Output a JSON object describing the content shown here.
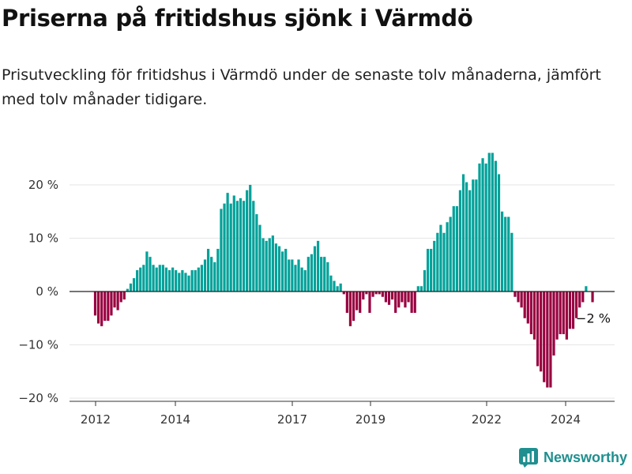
{
  "title": "Priserna på fritidshus sjönk i Värmdö",
  "subtitle": "Prisutveckling för fritidshus i Värmdö under de senaste tolv månaderna, jämfört med tolv månader tidigare.",
  "brand": "Newsworthy",
  "colors": {
    "positive": "#00a199",
    "negative": "#98003f",
    "grid": "#e6e6e6",
    "axis": "#333333"
  },
  "chart_data": {
    "type": "bar",
    "x_unit": "month",
    "x_start": "2012-01",
    "ylim": [
      -20,
      28
    ],
    "yticks": [
      20,
      10,
      0,
      -10,
      -20
    ],
    "ytick_labels": [
      "20 %",
      "10 %",
      "0 %",
      "−10 %",
      "−20 %"
    ],
    "xtick_labels": [
      "2012",
      "2014",
      "2017",
      "2019",
      "2022",
      "2024"
    ],
    "annotation": "−2 %",
    "values": [
      -4.5,
      -6,
      -6.5,
      -5.5,
      -5.5,
      -4.5,
      -3,
      -3.5,
      -2,
      -1.5,
      0.5,
      1.5,
      2.5,
      4,
      4.5,
      5,
      7.5,
      6.5,
      5,
      4.5,
      5,
      5,
      4.5,
      4,
      4.5,
      4,
      3.5,
      4,
      3.5,
      3,
      4,
      4,
      4.5,
      5,
      6,
      8,
      6.5,
      5.5,
      8,
      15.5,
      16.5,
      18.5,
      16.5,
      18,
      17,
      17.5,
      17,
      19,
      20,
      17,
      14.5,
      12.5,
      10,
      9.5,
      10,
      10.5,
      9,
      8.5,
      7.5,
      8,
      6,
      6,
      5,
      6,
      4.5,
      4,
      6.5,
      7,
      8.5,
      9.5,
      6.5,
      6.5,
      5.5,
      3,
      2,
      1,
      1.5,
      -0.5,
      -4,
      -6.5,
      -5.5,
      -3.5,
      -4,
      -1.5,
      -0.5,
      -4,
      -1,
      -0.5,
      -0.5,
      -1,
      -2,
      -2.5,
      -1.5,
      -4,
      -3,
      -2,
      -3,
      -2,
      -4,
      -4,
      1,
      1,
      4,
      8,
      8,
      9.5,
      11,
      12.5,
      11,
      13,
      14,
      16,
      16,
      19,
      22,
      20.5,
      19,
      21,
      21,
      24,
      25,
      24,
      26,
      26,
      24.5,
      22,
      15,
      14,
      14,
      11,
      -1,
      -2,
      -3,
      -5,
      -6,
      -8,
      -9,
      -14,
      -15,
      -17,
      -18,
      -18,
      -12,
      -9,
      -8,
      -8,
      -9,
      -7,
      -7,
      -5,
      -3,
      -2,
      1,
      0,
      -2
    ]
  }
}
